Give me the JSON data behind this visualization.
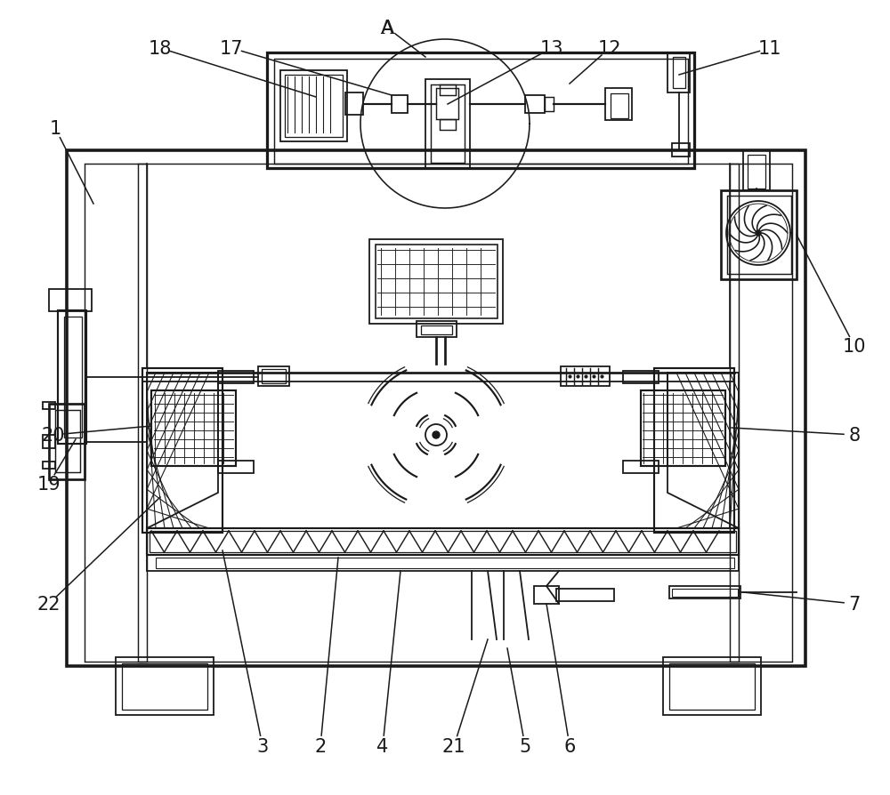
{
  "bg_color": "#ffffff",
  "lc": "#1a1a1a",
  "lw": 1.3,
  "fig_w": 10.0,
  "fig_h": 8.95,
  "dpi": 100
}
